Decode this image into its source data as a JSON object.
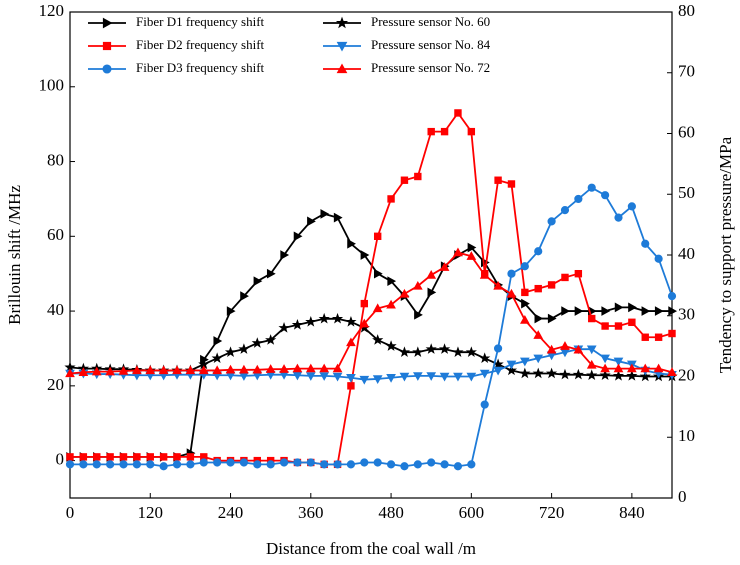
{
  "chart_data": {
    "type": "line",
    "xlabel": "Distance from the coal wall /m",
    "ylabel": "Brillouin shift /MHz",
    "y2label": "Tendency to support pressure/MPa",
    "xlim": [
      0,
      900
    ],
    "xticks": [
      0,
      120,
      240,
      360,
      480,
      600,
      720,
      840
    ],
    "ylim": [
      -10,
      120
    ],
    "yticks": [
      0,
      20,
      40,
      60,
      80,
      100,
      120
    ],
    "y2lim": [
      0,
      80
    ],
    "y2ticks": [
      0,
      10,
      20,
      30,
      40,
      50,
      60,
      70,
      80
    ],
    "legend": "upper left",
    "x": [
      0,
      20,
      40,
      60,
      80,
      100,
      120,
      140,
      160,
      180,
      200,
      220,
      240,
      260,
      280,
      300,
      320,
      340,
      360,
      380,
      400,
      420,
      440,
      460,
      480,
      500,
      520,
      540,
      560,
      580,
      600,
      620,
      640,
      660,
      680,
      700,
      720,
      740,
      760,
      780,
      800,
      820,
      840,
      860,
      880,
      900
    ],
    "series": [
      {
        "name": "Fiber D1 frequency shift",
        "color": "#000000",
        "marker": "triangle-right",
        "axis": "y",
        "values": [
          1,
          1,
          1,
          1,
          1,
          1,
          1,
          1,
          1,
          2,
          27,
          32,
          40,
          44,
          48,
          50,
          55,
          60,
          64,
          66,
          65,
          58,
          55,
          50,
          48,
          44,
          39,
          45,
          52,
          55,
          57,
          53,
          47,
          44,
          42,
          38,
          38,
          40,
          40,
          40,
          40,
          41,
          41,
          40,
          40,
          40
        ]
      },
      {
        "name": "Pressure sensor No. 60",
        "color": "#000000",
        "marker": "star",
        "axis": "y2",
        "values": [
          21.5,
          21.3,
          21.3,
          21.2,
          21.2,
          21.1,
          21,
          21,
          21,
          21,
          22,
          23,
          24,
          24.5,
          25.5,
          26,
          28,
          28.5,
          29,
          29.5,
          29.5,
          29,
          28,
          26,
          25,
          24,
          24,
          24.5,
          24.5,
          24,
          24,
          23,
          22,
          21,
          20.5,
          20.5,
          20.5,
          20.3,
          20.3,
          20.2,
          20.2,
          20.1,
          20.1,
          20,
          20,
          20
        ]
      },
      {
        "name": "Fiber D2 frequency shift",
        "color": "#ff0000",
        "marker": "square",
        "axis": "y",
        "values": [
          1,
          1,
          1,
          1,
          1,
          1,
          1,
          1,
          1,
          1,
          1,
          0,
          0,
          0,
          0,
          0,
          0,
          -0.5,
          -0.5,
          -1,
          -1,
          20,
          42,
          60,
          70,
          75,
          76,
          88,
          88,
          93,
          88,
          50,
          75,
          74,
          45,
          46,
          47,
          49,
          50,
          38,
          36,
          36,
          37,
          33,
          33,
          34
        ]
      },
      {
        "name": "Pressure sensor No. 84",
        "color": "#1e7bd8",
        "marker": "triangle-down",
        "axis": "y2",
        "values": [
          20.5,
          20.5,
          20.4,
          20.4,
          20.3,
          20.2,
          20.2,
          20.2,
          20.3,
          20.3,
          20.3,
          20.2,
          20.2,
          20.1,
          20.2,
          20.3,
          20.3,
          20.2,
          20.1,
          20.1,
          20,
          19.8,
          19.5,
          19.6,
          19.8,
          20,
          20.1,
          20.1,
          20,
          20,
          20,
          20.5,
          21,
          22,
          22.5,
          23,
          23.5,
          24,
          24.5,
          24.5,
          23,
          22.5,
          22,
          21,
          20.5,
          20.3
        ]
      },
      {
        "name": "Fiber D3 frequency shift",
        "color": "#1e7bd8",
        "marker": "circle",
        "axis": "y",
        "values": [
          -1,
          -1,
          -1,
          -1,
          -1,
          -1,
          -1,
          -1.5,
          -1,
          -1,
          -0.5,
          -0.5,
          -0.5,
          -0.5,
          -1,
          -1,
          -0.5,
          -0.5,
          -0.5,
          -1,
          -1,
          -1,
          -0.5,
          -0.5,
          -1,
          -1.5,
          -1,
          -0.5,
          -1,
          -1.5,
          -1,
          15,
          30,
          50,
          52,
          56,
          64,
          67,
          70,
          73,
          71,
          65,
          68,
          58,
          54,
          44
        ]
      },
      {
        "name": "Pressure sensor No. 72",
        "color": "#ff0000",
        "marker": "triangle-up",
        "axis": "y2",
        "values": [
          20.5,
          20.7,
          20.8,
          20.8,
          20.9,
          21,
          21,
          21,
          21,
          21,
          21,
          21,
          21.1,
          21.1,
          21.1,
          21.2,
          21.2,
          21.3,
          21.3,
          21.3,
          21.3,
          25.6,
          28.7,
          31.2,
          31.8,
          33.6,
          34.9,
          36.7,
          38,
          40.4,
          39.8,
          36.7,
          34.9,
          33.6,
          29.3,
          26.8,
          24.4,
          25,
          24.4,
          21.9,
          21.3,
          21.3,
          21.3,
          21.3,
          21.3,
          20.7
        ]
      }
    ]
  }
}
